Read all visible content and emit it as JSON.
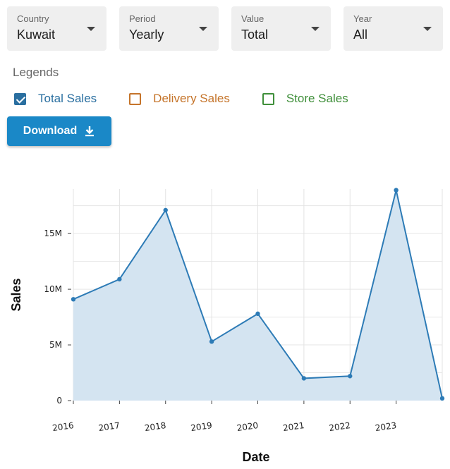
{
  "filters": [
    {
      "label": "Country",
      "value": "Kuwait"
    },
    {
      "label": "Period",
      "value": "Yearly"
    },
    {
      "label": "Value",
      "value": "Total"
    },
    {
      "label": "Year",
      "value": "All"
    }
  ],
  "legends": {
    "title": "Legends",
    "items": [
      {
        "label": "Total Sales",
        "checked": true,
        "color": "#2a6fa0"
      },
      {
        "label": "Delivery Sales",
        "checked": false,
        "color": "#c5742a"
      },
      {
        "label": "Store Sales",
        "checked": false,
        "color": "#3f8f3a"
      }
    ]
  },
  "download": {
    "label": "Download",
    "icon": "download-icon"
  },
  "colors": {
    "line": "#2d7bb6",
    "area": "#d4e4f1",
    "button": "#1a88c7"
  },
  "chart_data": {
    "type": "area",
    "x": [
      "2016",
      "2017",
      "2018",
      "2019",
      "2020",
      "2021",
      "2022",
      "2023",
      "2024"
    ],
    "x_tick_labels": [
      "2016",
      "2017",
      "2018",
      "2019",
      "2020",
      "2021",
      "2022",
      "2023"
    ],
    "series": [
      {
        "name": "Total Sales",
        "values": [
          9100000,
          10900000,
          17100000,
          5300000,
          7800000,
          2000000,
          2200000,
          18900000,
          200000
        ]
      }
    ],
    "y_ticks": [
      0,
      5000000,
      10000000,
      15000000
    ],
    "y_tick_labels": [
      "0",
      "5M",
      "10M",
      "15M"
    ],
    "ylim": [
      0,
      19000000
    ],
    "xlabel": "Date",
    "ylabel": "Sales",
    "grid": true
  }
}
